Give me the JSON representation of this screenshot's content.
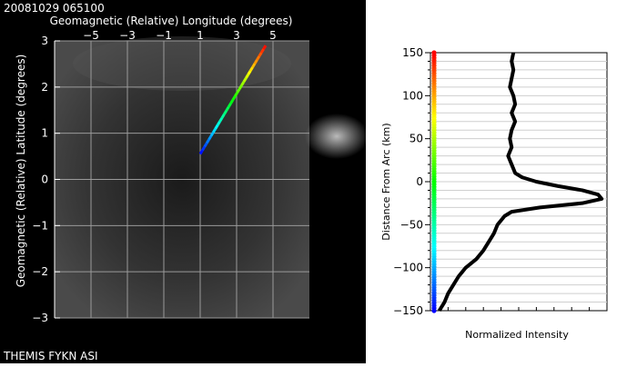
{
  "header": {
    "timestamp": "20081029 065100",
    "station": "THEMIS FYKN ASI"
  },
  "chart_data": [
    {
      "type": "line",
      "name_hint": "sky-map",
      "xlabel": "Geomagnetic (Relative) Longitude (degrees)",
      "ylabel": "Geomagnetic (Relative) Latitude (degrees)",
      "xlim": [
        -7,
        7
      ],
      "ylim": [
        -3,
        3
      ],
      "x_ticks": [
        -5,
        -3,
        -1,
        1,
        3,
        5
      ],
      "y_ticks": [
        -3,
        -2,
        -1,
        0,
        1,
        2,
        3
      ],
      "grid": true,
      "series": [
        {
          "x": [
            1.0,
            4.6
          ],
          "y": [
            0.55,
            2.9
          ],
          "color_scale": "rainbow"
        }
      ]
    },
    {
      "type": "line",
      "name_hint": "intensity-profile",
      "xlabel": "Normalized Intensity",
      "ylabel": "Distance From Arc (km)",
      "xlim": [
        0,
        1
      ],
      "ylim": [
        -150,
        150
      ],
      "y_ticks": [
        -150,
        -100,
        -50,
        0,
        50,
        100,
        150
      ],
      "grid": true,
      "color_bar": "rainbow",
      "series": [
        {
          "y": [
            150,
            140,
            130,
            120,
            110,
            100,
            90,
            80,
            70,
            60,
            50,
            40,
            30,
            20,
            10,
            5,
            0,
            -5,
            -10,
            -15,
            -20,
            -25,
            -30,
            -35,
            -40,
            -50,
            -60,
            -70,
            -80,
            -90,
            -100,
            -110,
            -120,
            -130,
            -140,
            -150
          ],
          "x": [
            0.47,
            0.46,
            0.47,
            0.46,
            0.45,
            0.47,
            0.48,
            0.46,
            0.48,
            0.46,
            0.45,
            0.46,
            0.44,
            0.46,
            0.48,
            0.52,
            0.6,
            0.72,
            0.86,
            0.95,
            0.97,
            0.86,
            0.62,
            0.46,
            0.42,
            0.38,
            0.36,
            0.33,
            0.3,
            0.26,
            0.2,
            0.16,
            0.13,
            0.1,
            0.08,
            0.05
          ]
        }
      ]
    }
  ]
}
